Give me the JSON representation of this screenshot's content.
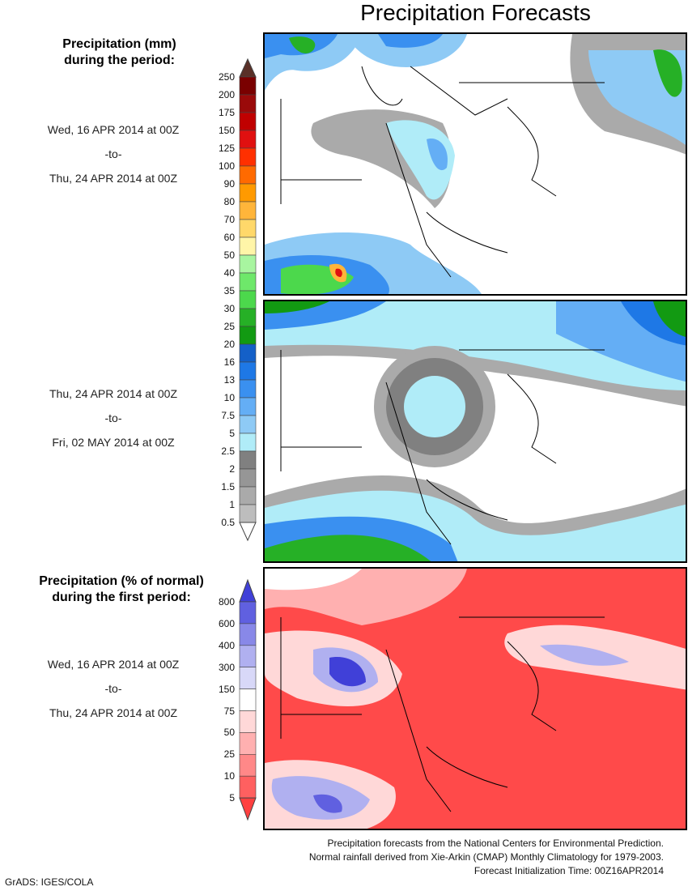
{
  "title": "Precipitation Forecasts",
  "legend1": {
    "heading1": "Precipitation (mm)",
    "heading2": "during the period:",
    "labels": [
      "250",
      "200",
      "175",
      "150",
      "125",
      "100",
      "90",
      "80",
      "70",
      "60",
      "50",
      "40",
      "35",
      "30",
      "25",
      "20",
      "16",
      "13",
      "10",
      "7.5",
      "5",
      "2.5",
      "2",
      "1.5",
      "1",
      "0.5"
    ],
    "colors": [
      "#7a0000",
      "#9a0a0a",
      "#c00000",
      "#e01010",
      "#ff3000",
      "#ff6a00",
      "#ff9a00",
      "#ffb53a",
      "#ffd86a",
      "#fff5a8",
      "#a8f5a0",
      "#6ee86a",
      "#4cd84c",
      "#26b026",
      "#129a12",
      "#1460c8",
      "#1e78e6",
      "#3a90f0",
      "#64aef5",
      "#8ecaf5",
      "#b0ecf8",
      "#808080",
      "#969696",
      "#aaaaaa",
      "#bdbdbd"
    ],
    "top_arrow": "#5a3028",
    "bottom_arrow": "#ffffff"
  },
  "period1": {
    "from": "Wed, 16 APR 2014 at 00Z",
    "to_word": "-to-",
    "to": "Thu, 24 APR 2014 at 00Z"
  },
  "period2": {
    "from": "Thu, 24 APR 2014 at 00Z",
    "to_word": "-to-",
    "to": "Fri, 02 MAY 2014 at 00Z"
  },
  "legend2": {
    "heading1": "Precipitation (% of normal)",
    "heading2": "during the first period:",
    "labels": [
      "800",
      "600",
      "400",
      "300",
      "150",
      "75",
      "50",
      "25",
      "10",
      "5"
    ],
    "colors": [
      "#6060e0",
      "#8888e8",
      "#b0b0f0",
      "#d8d8f8",
      "#ffffff",
      "#ffd8d8",
      "#ffb0b0",
      "#ff8888",
      "#ff6060"
    ],
    "top_arrow": "#4040d8",
    "bottom_arrow": "#ff4040"
  },
  "period3": {
    "from": "Wed, 16 APR 2014 at 00Z",
    "to_word": "-to-",
    "to": "Thu, 24 APR 2014 at 00Z"
  },
  "footer": [
    "Precipitation forecasts from the National Centers for Environmental Prediction.",
    "Normal rainfall derived from Xie-Arkin (CMAP) Monthly Climatology for 1979-2003.",
    "Forecast Initialization Time: 00Z16APR2014"
  ],
  "credit": "GrADS: IGES/COLA",
  "chart_data": [
    {
      "type": "heatmap",
      "title": "Precipitation (mm) 16 APR - 24 APR 2014",
      "scale": "legend1"
    },
    {
      "type": "heatmap",
      "title": "Precipitation (mm) 24 APR - 02 MAY 2014",
      "scale": "legend1"
    },
    {
      "type": "heatmap",
      "title": "Precipitation (% of normal) 16 APR - 24 APR 2014",
      "scale": "legend2"
    }
  ]
}
